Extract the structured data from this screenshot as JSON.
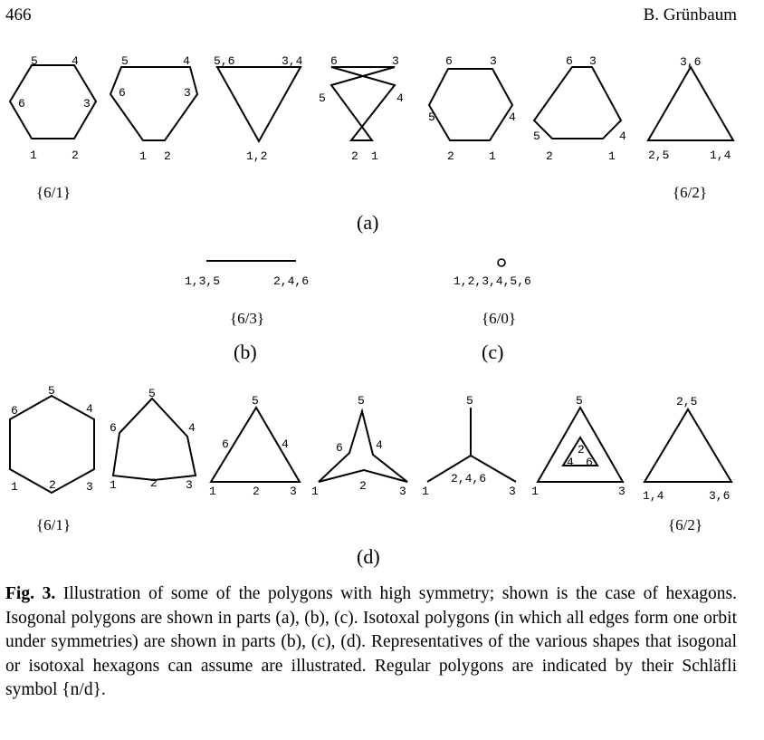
{
  "header": {
    "page_number": "466",
    "author": "B. Grünbaum"
  },
  "figure": {
    "a": {
      "poly1": {
        "labels": [
          "5",
          "4",
          "6",
          "3",
          "1",
          "2"
        ],
        "schlafli": "{6/1}"
      },
      "poly2": {
        "labels": [
          "5",
          "4",
          "6",
          "3",
          "1",
          "2"
        ]
      },
      "poly3": {
        "labels": [
          "5,6",
          "3,4",
          "1,2"
        ]
      },
      "poly4": {
        "labels": [
          "6",
          "3",
          "5",
          "4",
          "2",
          "1"
        ]
      },
      "poly5": {
        "labels": [
          "6",
          "3",
          "5",
          "4",
          "2",
          "1"
        ]
      },
      "poly6": {
        "labels": [
          "6",
          "3",
          "5",
          "4",
          "2",
          "1"
        ]
      },
      "poly7": {
        "labels": [
          "3,6",
          "2,5",
          "1,4"
        ],
        "schlafli": "{6/2}"
      },
      "part": "(a)"
    },
    "b": {
      "labels": [
        "1,3,5",
        "2,4,6"
      ],
      "schlafli": "{6/3}",
      "part": "(b)"
    },
    "c": {
      "labels": [
        "1,2,3,4,5,6"
      ],
      "schlafli": "{6/0}",
      "part": "(c)"
    },
    "d": {
      "poly1": {
        "labels": [
          "5",
          "6",
          "4",
          "1",
          "2",
          "3"
        ],
        "schlafli": "{6/1}"
      },
      "poly2": {
        "labels": [
          "5",
          "6",
          "4",
          "1",
          "2",
          "3"
        ]
      },
      "poly3": {
        "labels": [
          "5",
          "6",
          "4",
          "1",
          "2",
          "3"
        ]
      },
      "poly4": {
        "labels": [
          "5",
          "6",
          "4",
          "1",
          "2",
          "3"
        ]
      },
      "poly5": {
        "labels": [
          "5",
          "2,4,6",
          "1",
          "3"
        ]
      },
      "poly6": {
        "labels": [
          "5",
          "2",
          "4",
          "6",
          "1",
          "3"
        ]
      },
      "poly7": {
        "labels": [
          "2,5",
          "1,4",
          "3,6"
        ],
        "schlafli": "{6/2}"
      },
      "part": "(d)"
    }
  },
  "caption": {
    "label": "Fig. 3.",
    "text": " Illustration of some of the polygons with high symmetry; shown is the case of hexagons. Isogonal polygons are shown in parts (a), (b), (c). Isotoxal polygons (in which all edges form one orbit under symmetries) are shown in parts (b), (c), (d). Representatives of the various shapes that isogonal or isotoxal hexagons can assume are illustrated. Regular polygons are indicated by their Schläfli symbol {n/d}."
  }
}
